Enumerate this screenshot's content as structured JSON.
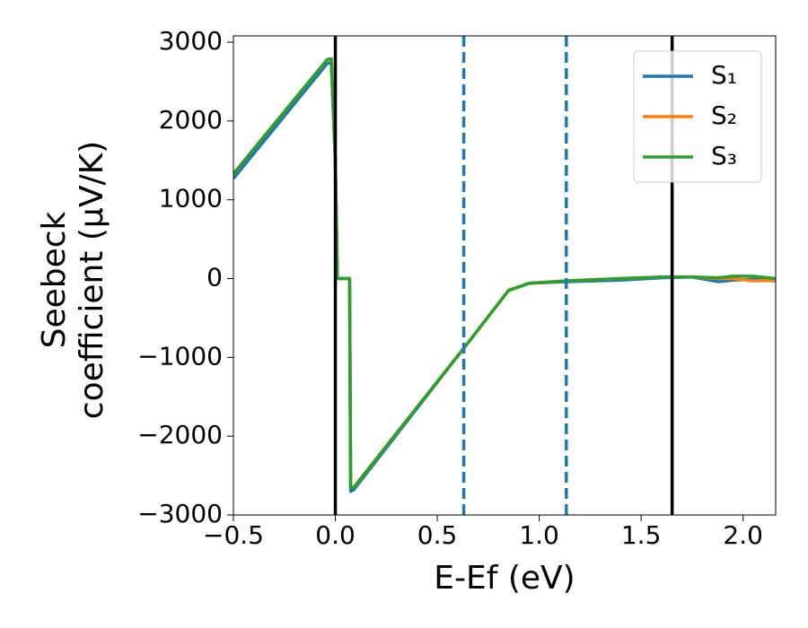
{
  "chart_data": {
    "type": "line",
    "xlabel": "E-Ef (eV)",
    "ylabel": [
      "Seebeck",
      "coefficient  (μV/K)"
    ],
    "x": [
      -0.5,
      -0.04,
      -0.02,
      0.0,
      0.01,
      0.07,
      0.075,
      0.09,
      0.64,
      0.85,
      0.95,
      1.13,
      1.4,
      1.6,
      1.75,
      1.88,
      1.95,
      2.05,
      2.16
    ],
    "series": [
      {
        "name": "S₁",
        "color": "#1f77b4",
        "values": [
          1270,
          2730,
          2740,
          1500,
          0,
          0,
          -2700,
          -2680,
          -850,
          -150,
          -60,
          -40,
          -20,
          10,
          20,
          -40,
          -20,
          -10,
          -30
        ]
      },
      {
        "name": "S₂",
        "color": "#ff7f0e",
        "values": [
          1330,
          2780,
          2790,
          1500,
          0,
          0,
          -2650,
          -2650,
          -850,
          -150,
          -60,
          -30,
          0,
          20,
          20,
          0,
          0,
          -30,
          -20
        ]
      },
      {
        "name": "S₃",
        "color": "#2ca02c",
        "values": [
          1330,
          2780,
          2790,
          1500,
          0,
          0,
          -2650,
          -2650,
          -850,
          -150,
          -60,
          -30,
          0,
          20,
          20,
          10,
          30,
          30,
          0
        ]
      }
    ],
    "vlines": [
      {
        "x": 0,
        "color": "#000000",
        "style": "solid"
      },
      {
        "x": 0.63,
        "color": "#1f77b4",
        "style": "dashed"
      },
      {
        "x": 1.133,
        "color": "#1f77b4",
        "style": "dashed"
      },
      {
        "x": 1.652,
        "color": "#000000",
        "style": "solid"
      }
    ],
    "xlim": [
      -0.5,
      2.16
    ],
    "ylim": [
      -3000,
      3080
    ],
    "xticks": [
      {
        "value": -0.5,
        "label": "−0.5"
      },
      {
        "value": 0,
        "label": "0.0"
      },
      {
        "value": 0.5,
        "label": "0.5"
      },
      {
        "value": 1,
        "label": "1.0"
      },
      {
        "value": 1.5,
        "label": "1.5"
      },
      {
        "value": 2,
        "label": "2.0"
      }
    ],
    "yticks": [
      {
        "value": -3000,
        "label": "−3000"
      },
      {
        "value": -2000,
        "label": "−2000"
      },
      {
        "value": -1000,
        "label": "−1000"
      },
      0,
      1000,
      2000,
      3000
    ],
    "legend": "upper right"
  }
}
